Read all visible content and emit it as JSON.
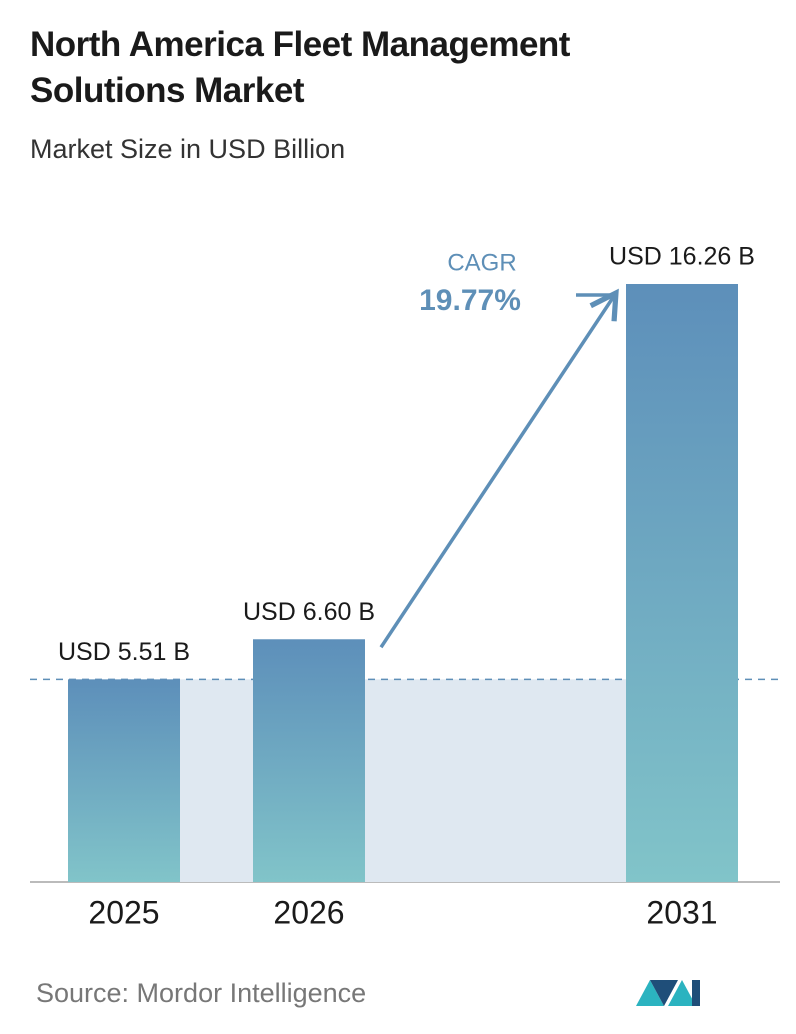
{
  "chart_data": {
    "type": "bar",
    "title": "North America Fleet Management Solutions Market",
    "subtitle": "Market Size in USD Billion",
    "categories": [
      "2025",
      "2026",
      "2031"
    ],
    "values": [
      5.51,
      6.6,
      16.26
    ],
    "value_labels": [
      "USD 5.51 B",
      "USD 6.60 B",
      "USD 16.26 B"
    ],
    "cagr_label": "CAGR",
    "cagr_value": "19.77%",
    "source": "Source: Mordor Intelligence"
  }
}
